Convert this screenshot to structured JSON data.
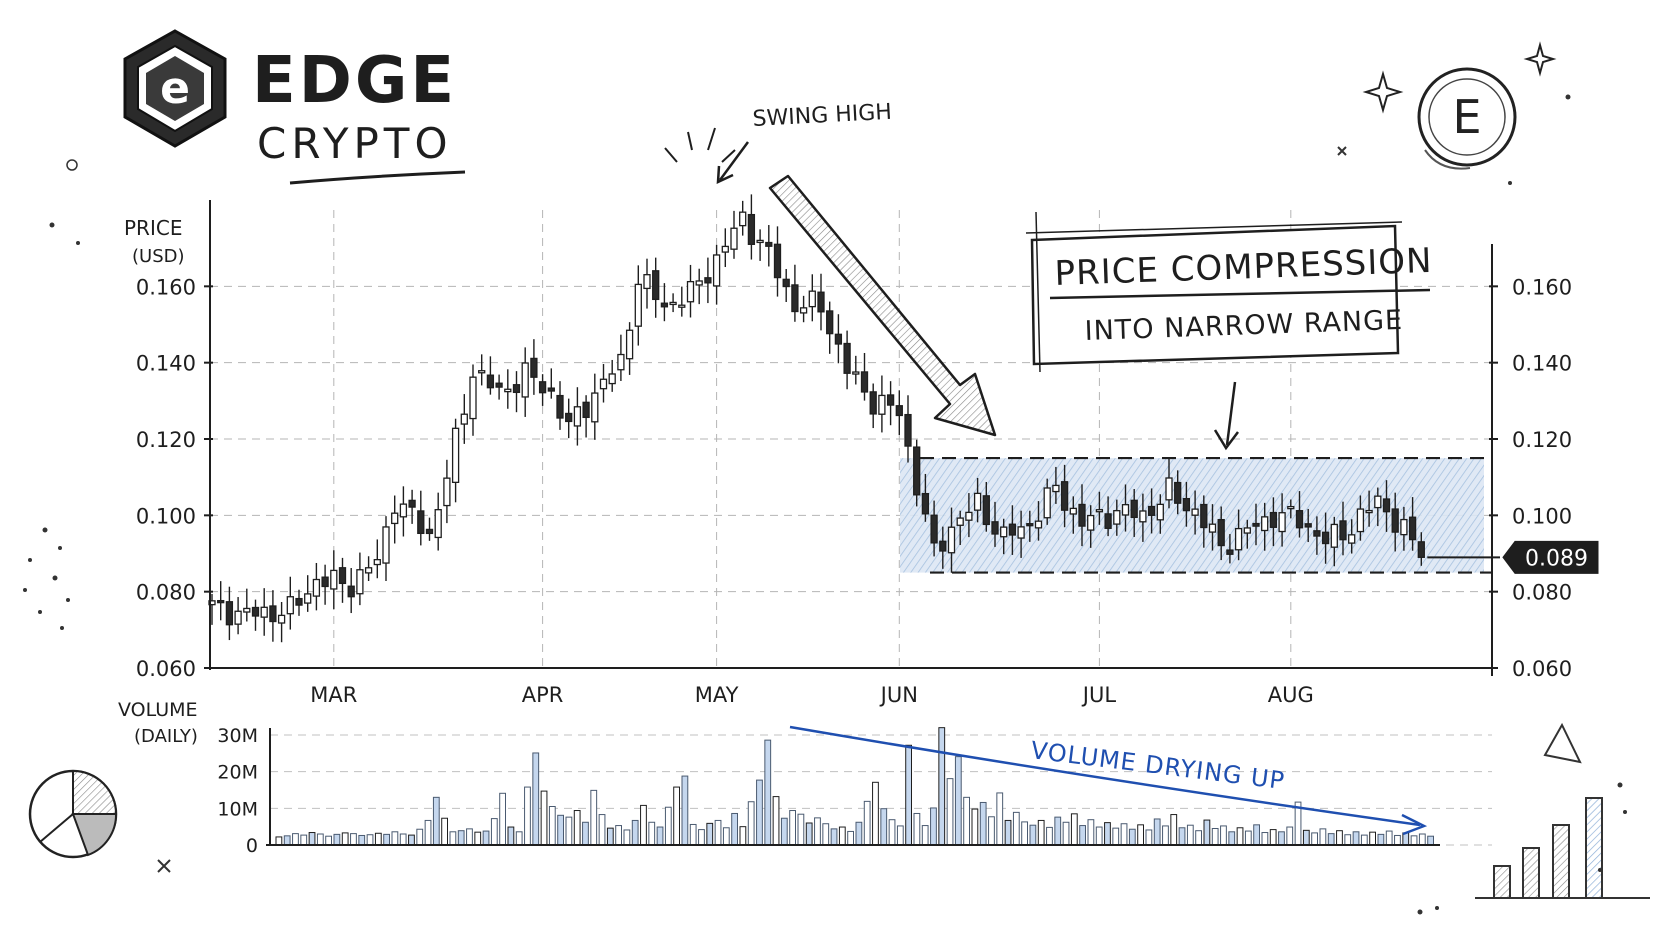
{
  "brand": {
    "name": "EDGE",
    "subtitle": "CRYPTO",
    "logo_icon": "hexagon-e-logo-icon",
    "coin_icon": "coin-e-icon",
    "logo_letter": "e",
    "coin_letter": "E"
  },
  "colors": {
    "ink": "#1e1e1e",
    "accent_blue": "#1f4fb0",
    "range_fill": "#bfd3ea",
    "volume_blue": "#8fb0d8",
    "grid": "#9a9a9a",
    "badge_bg": "#1e1e1e",
    "badge_text": "#ffffff"
  },
  "chart_data": [
    {
      "type": "candlestick",
      "title": "",
      "ylabel": "PRICE",
      "ylabel_unit": "(USD)",
      "ylim": [
        0.06,
        0.18
      ],
      "yticks": [
        "0.060",
        "0.080",
        "0.100",
        "0.120",
        "0.140",
        "0.160"
      ],
      "yticks_right": [
        "0.060",
        "0.080",
        "0.100",
        "0.120",
        "0.140",
        "0.160"
      ],
      "xticks": [
        {
          "label": "MAR",
          "index": 14
        },
        {
          "label": "APR",
          "index": 38
        },
        {
          "label": "MAY",
          "index": 58
        },
        {
          "label": "JUN",
          "index": 79
        },
        {
          "label": "JUL",
          "index": 102
        },
        {
          "label": "AUG",
          "index": 124
        }
      ],
      "grid": true,
      "current_price": "0.089",
      "current_value": 0.089,
      "annotations": {
        "swing_high": "SWING HIGH",
        "compression_title": "PRICE COMPRESSION",
        "compression_sub": "INTO NARROW RANGE"
      },
      "range_band": {
        "low": 0.085,
        "high": 0.115,
        "start_index": 80
      },
      "close_keypoints": [
        [
          0,
          0.076
        ],
        [
          4,
          0.074
        ],
        [
          9,
          0.075
        ],
        [
          12,
          0.083
        ],
        [
          16,
          0.082
        ],
        [
          19,
          0.088
        ],
        [
          21,
          0.104
        ],
        [
          25,
          0.095
        ],
        [
          27,
          0.11
        ],
        [
          30,
          0.138
        ],
        [
          33,
          0.132
        ],
        [
          36,
          0.137
        ],
        [
          39,
          0.132
        ],
        [
          41,
          0.123
        ],
        [
          44,
          0.132
        ],
        [
          47,
          0.14
        ],
        [
          49,
          0.162
        ],
        [
          52,
          0.155
        ],
        [
          55,
          0.158
        ],
        [
          58,
          0.167
        ],
        [
          61,
          0.178
        ],
        [
          64,
          0.168
        ],
        [
          67,
          0.155
        ],
        [
          70,
          0.155
        ],
        [
          73,
          0.138
        ],
        [
          76,
          0.13
        ],
        [
          79,
          0.127
        ],
        [
          81,
          0.108
        ],
        [
          83,
          0.09
        ],
        [
          85,
          0.097
        ],
        [
          88,
          0.103
        ],
        [
          91,
          0.094
        ],
        [
          94,
          0.098
        ],
        [
          97,
          0.107
        ],
        [
          100,
          0.098
        ],
        [
          104,
          0.101
        ],
        [
          107,
          0.1
        ],
        [
          110,
          0.106
        ],
        [
          113,
          0.101
        ],
        [
          116,
          0.092
        ],
        [
          119,
          0.096
        ],
        [
          122,
          0.1
        ],
        [
          125,
          0.099
        ],
        [
          128,
          0.093
        ],
        [
          131,
          0.097
        ],
        [
          134,
          0.104
        ],
        [
          137,
          0.096
        ],
        [
          139,
          0.089
        ]
      ]
    },
    {
      "type": "bar",
      "title": "",
      "ylabel": "VOLUME",
      "ylabel_unit": "(DAILY)",
      "ylim": [
        0,
        30000000
      ],
      "yticks": [
        "0",
        "10M",
        "20M",
        "30M"
      ],
      "annotation": "VOLUME DRYING UP",
      "volume_m": [
        2.2,
        2.5,
        3.1,
        2.7,
        3.4,
        3.0,
        2.4,
        2.9,
        3.3,
        3.1,
        2.6,
        2.8,
        3.2,
        2.9,
        3.6,
        3.0,
        2.7,
        4.3,
        6.7,
        13.0,
        7.3,
        3.6,
        3.9,
        4.4,
        3.5,
        3.8,
        7.2,
        14.1,
        4.9,
        3.6,
        15.8,
        25.1,
        14.7,
        10.5,
        8.1,
        7.6,
        9.4,
        6.2,
        14.9,
        8.3,
        4.6,
        5.3,
        4.1,
        6.7,
        10.8,
        6.2,
        4.9,
        10.3,
        15.8,
        18.8,
        5.6,
        4.2,
        5.9,
        6.7,
        4.7,
        8.6,
        5.0,
        11.8,
        17.7,
        28.6,
        13.2,
        7.3,
        9.4,
        8.4,
        6.0,
        7.4,
        5.8,
        4.4,
        4.9,
        3.7,
        6.2,
        11.9,
        17.1,
        9.9,
        6.9,
        5.2,
        27.2,
        8.6,
        5.3,
        10.1,
        32.0,
        18.1,
        24.1,
        13.0,
        9.8,
        11.6,
        7.7,
        14.2,
        6.7,
        8.9,
        6.3,
        5.4,
        6.7,
        4.8,
        7.6,
        6.2,
        8.5,
        5.3,
        6.9,
        4.9,
        6.1,
        4.6,
        5.8,
        4.3,
        5.5,
        4.1,
        7.1,
        5.2,
        8.3,
        4.7,
        5.4,
        3.9,
        6.8,
        4.5,
        5.2,
        3.6,
        4.7,
        3.8,
        5.5,
        3.4,
        4.2,
        3.6,
        4.9,
        11.7,
        4.0,
        3.3,
        4.4,
        3.1,
        3.9,
        2.8,
        3.6,
        2.7,
        3.5,
        2.9,
        3.8,
        2.6,
        3.3,
        2.5,
        3.0,
        2.4
      ]
    }
  ]
}
